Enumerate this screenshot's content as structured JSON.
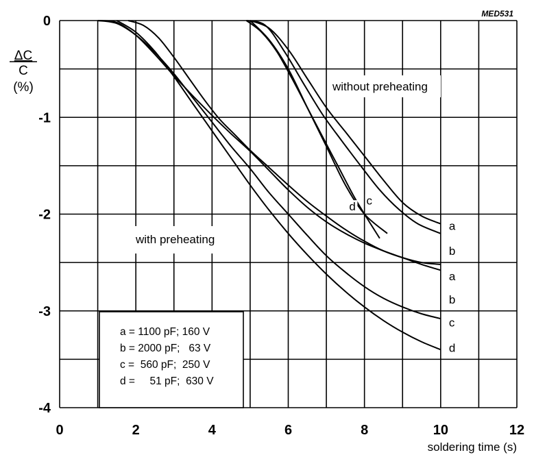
{
  "chart_data": {
    "type": "line",
    "code": "MED531",
    "xlabel": "soldering time (s)",
    "ylabel": {
      "delta_c": "ΔC",
      "c": "C",
      "unit": "(%)"
    },
    "xlim": [
      0,
      12
    ],
    "ylim": [
      -4,
      0
    ],
    "x_ticks": [
      "0",
      "2",
      "4",
      "6",
      "8",
      "10",
      "12"
    ],
    "y_ticks": [
      "0",
      "-1",
      "-2",
      "-3",
      "-4"
    ],
    "grid": true,
    "annotations": {
      "without_preheating": "without preheating",
      "with_preheating": "with preheating"
    },
    "legend": [
      "a = 1100 pF; 160 V",
      "b = 2000 pF;   63 V",
      "c =  560 pF;  250 V",
      "d =     51 pF;  630 V"
    ],
    "series": [
      {
        "name": "a",
        "group": "without preheating",
        "x": [
          5.0,
          5.5,
          6.0,
          6.5,
          7.0,
          7.5,
          8.0,
          8.5,
          9.0,
          9.5,
          10.0
        ],
        "y": [
          0.0,
          -0.08,
          -0.3,
          -0.6,
          -0.9,
          -1.15,
          -1.4,
          -1.65,
          -1.88,
          -2.02,
          -2.1
        ]
      },
      {
        "name": "b",
        "group": "without preheating",
        "x": [
          4.9,
          5.4,
          5.9,
          6.4,
          6.9,
          7.4,
          7.9,
          8.4,
          8.9,
          9.4,
          10.0
        ],
        "y": [
          0.0,
          -0.05,
          -0.32,
          -0.65,
          -0.97,
          -1.24,
          -1.5,
          -1.75,
          -1.95,
          -2.1,
          -2.2
        ]
      },
      {
        "name": "c",
        "group": "without preheating",
        "x": [
          5.0,
          5.5,
          6.0,
          6.5,
          7.0,
          7.5,
          8.0,
          8.6
        ],
        "y": [
          0.0,
          -0.2,
          -0.5,
          -0.9,
          -1.3,
          -1.7,
          -2.0,
          -2.2
        ]
      },
      {
        "name": "d",
        "group": "without preheating",
        "x": [
          4.9,
          5.3,
          5.7,
          6.1,
          6.5,
          6.9,
          7.3,
          7.7,
          8.0,
          8.4
        ],
        "y": [
          0.0,
          -0.12,
          -0.32,
          -0.6,
          -0.9,
          -1.2,
          -1.5,
          -1.8,
          -2.0,
          -2.25
        ]
      },
      {
        "name": "a",
        "group": "with preheating",
        "x": [
          1.8,
          2.2,
          2.6,
          3.0,
          3.4,
          3.8,
          4.2,
          4.6,
          5.0,
          5.5,
          6.0,
          6.5,
          7.0,
          7.5,
          8.0,
          8.5,
          9.0,
          9.5,
          10.0
        ],
        "y": [
          0.0,
          -0.05,
          -0.18,
          -0.38,
          -0.6,
          -0.82,
          -1.02,
          -1.18,
          -1.34,
          -1.52,
          -1.7,
          -1.87,
          -2.02,
          -2.16,
          -2.28,
          -2.38,
          -2.45,
          -2.5,
          -2.52
        ]
      },
      {
        "name": "b",
        "group": "with preheating",
        "x": [
          1.0,
          1.5,
          2.0,
          2.5,
          3.0,
          3.5,
          4.0,
          4.5,
          5.0,
          5.5,
          6.0,
          6.5,
          7.0,
          7.5,
          8.0,
          8.5,
          9.0,
          9.5,
          10.0
        ],
        "y": [
          0.0,
          -0.02,
          -0.15,
          -0.35,
          -0.57,
          -0.78,
          -0.98,
          -1.17,
          -1.35,
          -1.55,
          -1.75,
          -1.93,
          -2.08,
          -2.2,
          -2.3,
          -2.38,
          -2.45,
          -2.52,
          -2.58
        ]
      },
      {
        "name": "c",
        "group": "with preheating",
        "x": [
          1.0,
          1.5,
          2.0,
          2.5,
          3.0,
          3.5,
          4.0,
          4.5,
          5.0,
          5.5,
          6.0,
          6.5,
          7.0,
          7.5,
          8.0,
          8.5,
          9.0,
          9.5,
          10.0
        ],
        "y": [
          0.0,
          -0.03,
          -0.15,
          -0.33,
          -0.55,
          -0.8,
          -1.05,
          -1.3,
          -1.53,
          -1.78,
          -2.0,
          -2.22,
          -2.43,
          -2.6,
          -2.75,
          -2.87,
          -2.96,
          -3.03,
          -3.08
        ]
      },
      {
        "name": "d",
        "group": "with preheating",
        "x": [
          1.5,
          2.0,
          2.5,
          3.0,
          3.5,
          4.0,
          4.5,
          5.0,
          5.5,
          6.0,
          6.5,
          7.0,
          7.5,
          8.0,
          8.5,
          9.0,
          9.5,
          10.0
        ],
        "y": [
          0.0,
          -0.12,
          -0.32,
          -0.58,
          -0.86,
          -1.14,
          -1.42,
          -1.7,
          -1.96,
          -2.2,
          -2.42,
          -2.62,
          -2.8,
          -2.96,
          -3.1,
          -3.22,
          -3.32,
          -3.4
        ]
      }
    ],
    "end_labels": [
      {
        "text": "a",
        "x": 10.0,
        "y": -2.12
      },
      {
        "text": "b",
        "x": 10.0,
        "y": -2.38
      },
      {
        "text": "a",
        "x": 10.0,
        "y": -2.64
      },
      {
        "text": "b",
        "x": 10.0,
        "y": -2.88
      },
      {
        "text": "c",
        "x": 10.0,
        "y": -3.12
      },
      {
        "text": "d",
        "x": 10.0,
        "y": -3.38
      },
      {
        "text": "d",
        "x": 7.6,
        "y": -1.92
      },
      {
        "text": "c",
        "x": 8.05,
        "y": -1.86
      }
    ]
  }
}
